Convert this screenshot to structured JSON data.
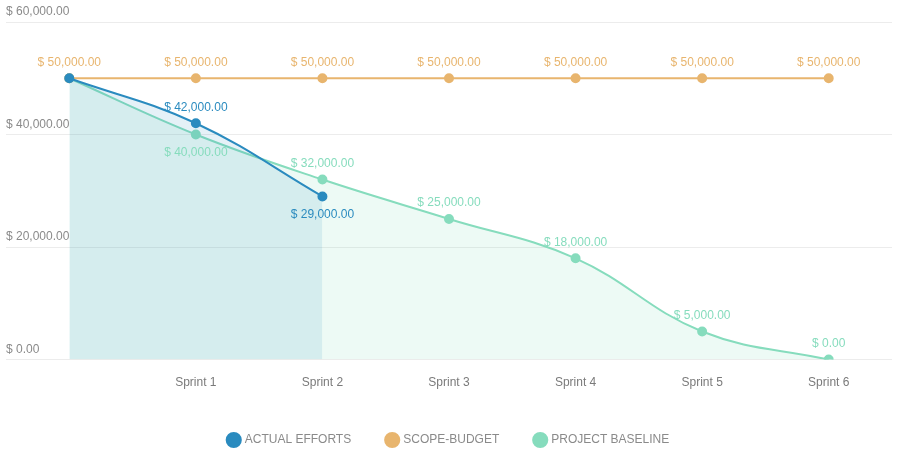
{
  "chart_data": {
    "type": "line",
    "categories": [
      null,
      "Sprint 1",
      "Sprint 2",
      "Sprint 3",
      "Sprint 4",
      "Sprint 5",
      "Sprint 6"
    ],
    "ylim": [
      0,
      60000
    ],
    "yticks": [
      {
        "value": 0,
        "label": "$ 0.00"
      },
      {
        "value": 20000,
        "label": "$ 20,000.00"
      },
      {
        "value": 40000,
        "label": "$ 40,000.00"
      },
      {
        "value": 60000,
        "label": "$ 60,000.00"
      }
    ],
    "grid": true,
    "legend": "bottom",
    "data_labels": true,
    "marker": "circle",
    "series": [
      {
        "name": "PROJECT BASELINE",
        "color": "#86dcbd",
        "values": [
          50000,
          40000,
          32000,
          25000,
          18000,
          5000,
          0
        ],
        "value_labels": [
          null,
          "$ 40,000.00",
          "$ 32,000.00",
          "$ 25,000.00",
          "$ 18,000.00",
          "$ 5,000.00",
          "$ 0.00"
        ]
      },
      {
        "name": "SCOPE-BUDGET",
        "color": "#e8b56e",
        "values": [
          50000,
          50000,
          50000,
          50000,
          50000,
          50000,
          50000
        ],
        "value_labels": [
          "$ 50,000.00",
          "$ 50,000.00",
          "$ 50,000.00",
          "$ 50,000.00",
          "$ 50,000.00",
          "$ 50,000.00",
          "$ 50,000.00"
        ]
      },
      {
        "name": "ACTUAL EFFORTS",
        "color": "#2a8bbf",
        "values": [
          50000,
          42000,
          29000,
          null,
          null,
          null,
          null
        ],
        "value_labels": [
          null,
          "$ 42,000.00",
          "$ 29,000.00",
          null,
          null,
          null,
          null
        ]
      }
    ]
  }
}
